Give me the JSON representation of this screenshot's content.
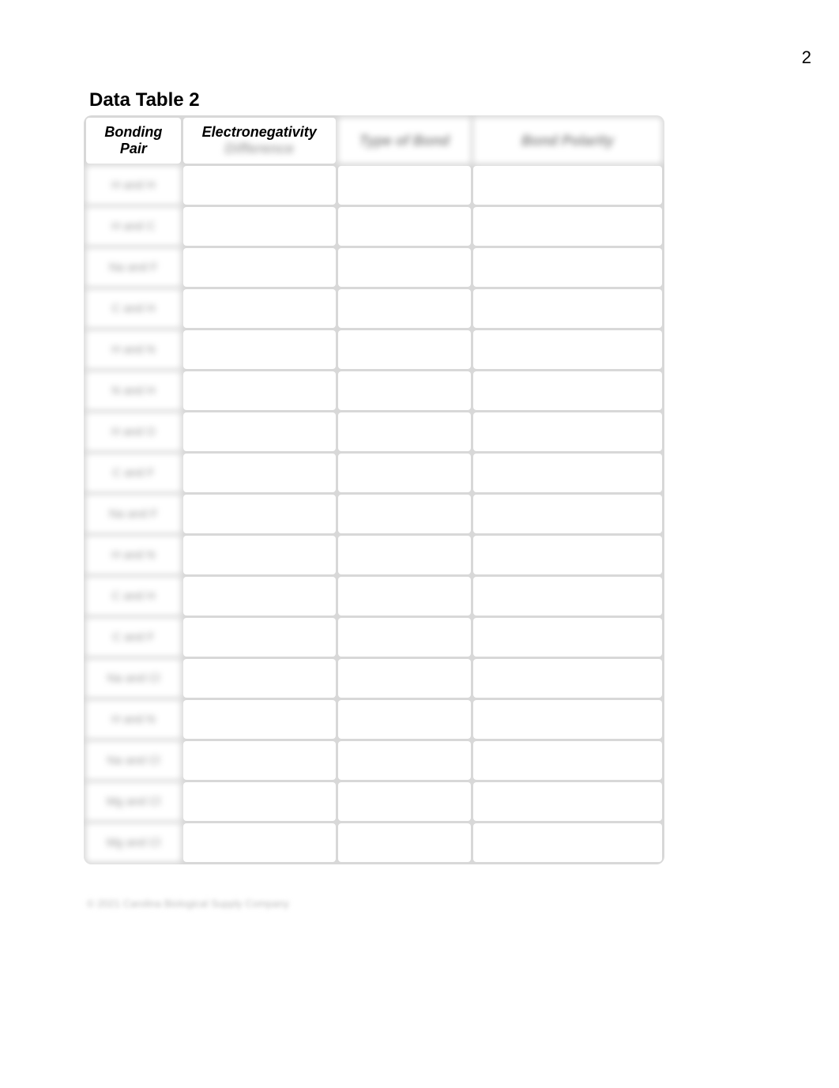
{
  "page_number": "2",
  "title": "Data Table 2",
  "table": {
    "headers": [
      {
        "label_line1": "Bonding",
        "label_line2": "Pair",
        "blurred": false
      },
      {
        "label_line1": "Electronegativity",
        "label_line2": "Difference",
        "blurred": false,
        "line2_blurred": true
      },
      {
        "label_line1": "Type of Bond",
        "label_line2": "",
        "blurred": true
      },
      {
        "label_line1": "Bond Polarity",
        "label_line2": "",
        "blurred": true
      }
    ],
    "rows": [
      {
        "pair": "H and H"
      },
      {
        "pair": "H and C"
      },
      {
        "pair": "Na and F"
      },
      {
        "pair": "C and H"
      },
      {
        "pair": "H and N"
      },
      {
        "pair": "N and H"
      },
      {
        "pair": "H and O"
      },
      {
        "pair": "C and F"
      },
      {
        "pair": "Na and F"
      },
      {
        "pair": "H and N"
      },
      {
        "pair": "C and H"
      },
      {
        "pair": "C and F"
      },
      {
        "pair": "Na and Cl"
      },
      {
        "pair": "H and N"
      },
      {
        "pair": "Na and Cl"
      },
      {
        "pair": "Mg and Cl"
      },
      {
        "pair": "Mg and Cl"
      }
    ]
  },
  "copyright": "© 2021 Carolina Biological Supply Company",
  "styling": {
    "background_color": "#ffffff",
    "table_border_color": "#d8d8d8",
    "cell_background": "#ffffff",
    "text_color": "#000000",
    "blurred_text_color": "#999999",
    "title_font_size": 24,
    "header_font_size": 18,
    "page_number_font_size": 22
  }
}
